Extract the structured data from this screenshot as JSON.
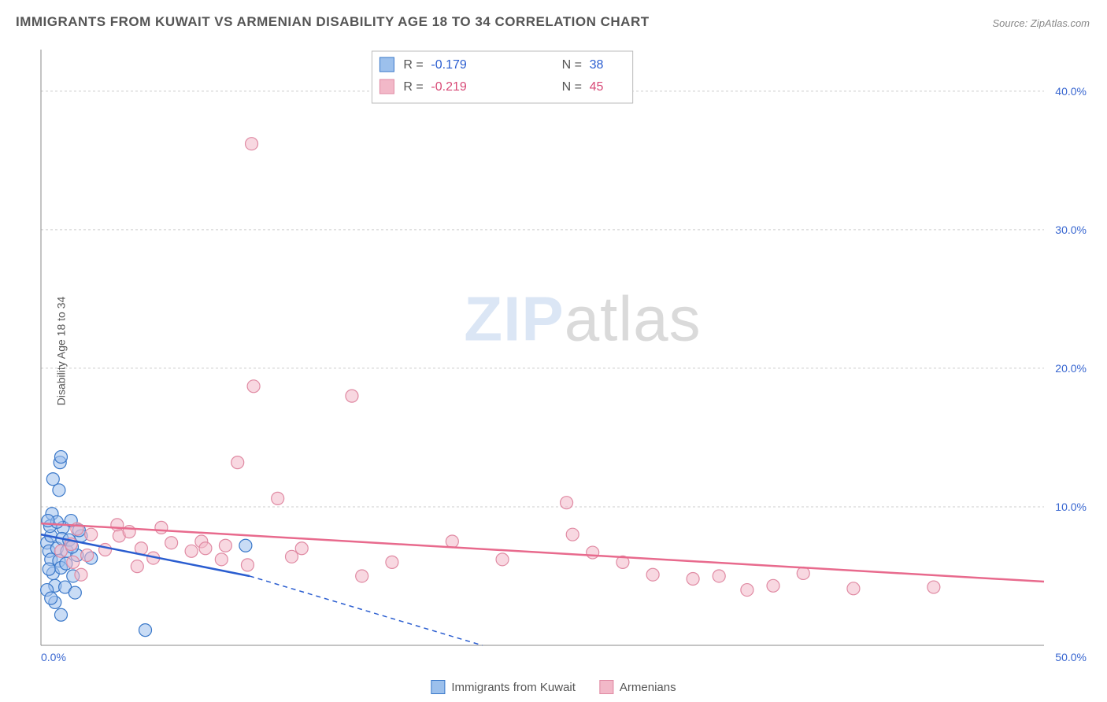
{
  "title": "IMMIGRANTS FROM KUWAIT VS ARMENIAN DISABILITY AGE 18 TO 34 CORRELATION CHART",
  "source": "Source: ZipAtlas.com",
  "ylabel": "Disability Age 18 to 34",
  "watermark_a": "ZIP",
  "watermark_b": "atlas",
  "chart": {
    "type": "scatter",
    "xlim": [
      0,
      50
    ],
    "ylim": [
      0,
      43
    ],
    "xticks": [
      0,
      50
    ],
    "xtick_labels": [
      "0.0%",
      "50.0%"
    ],
    "yticks": [
      10,
      20,
      30,
      40
    ],
    "ytick_labels": [
      "10.0%",
      "20.0%",
      "30.0%",
      "40.0%"
    ],
    "grid_color": "#cccccc",
    "background_color": "#ffffff",
    "axis_color": "#888888",
    "tick_label_color": "#3866d0",
    "marker_radius": 8,
    "marker_opacity": 0.55,
    "series": [
      {
        "name": "Immigrants from Kuwait",
        "color_fill": "#9cc0ec",
        "color_stroke": "#3a78c9",
        "trend": {
          "x1": 0,
          "y1": 8.0,
          "x2": 10.4,
          "y2": 5.0,
          "dash_after_x": 10.4,
          "dash_to_x": 22,
          "dash_to_y": 0.0,
          "color": "#2a5dd0",
          "width": 2.5
        },
        "points": [
          [
            0.3,
            7.4
          ],
          [
            0.4,
            6.8
          ],
          [
            0.5,
            7.9
          ],
          [
            0.5,
            6.2
          ],
          [
            0.45,
            8.6
          ],
          [
            0.6,
            5.2
          ],
          [
            0.7,
            4.3
          ],
          [
            0.55,
            9.5
          ],
          [
            0.8,
            7.0
          ],
          [
            0.9,
            6.1
          ],
          [
            1.0,
            5.6
          ],
          [
            1.1,
            8.5
          ],
          [
            1.05,
            7.7
          ],
          [
            0.7,
            3.1
          ],
          [
            0.9,
            11.2
          ],
          [
            1.3,
            6.8
          ],
          [
            1.4,
            7.6
          ],
          [
            1.6,
            5.0
          ],
          [
            1.5,
            9.0
          ],
          [
            0.3,
            4.0
          ],
          [
            0.4,
            5.5
          ],
          [
            1.8,
            6.5
          ],
          [
            1.2,
            4.2
          ],
          [
            2.0,
            7.9
          ],
          [
            0.8,
            8.9
          ],
          [
            0.95,
            13.2
          ],
          [
            1.0,
            13.6
          ],
          [
            0.6,
            12.0
          ],
          [
            2.5,
            6.3
          ],
          [
            1.7,
            3.8
          ],
          [
            1.9,
            8.3
          ],
          [
            1.0,
            2.2
          ],
          [
            5.2,
            1.1
          ],
          [
            10.2,
            7.2
          ],
          [
            0.5,
            3.4
          ],
          [
            0.35,
            9.0
          ],
          [
            1.25,
            5.9
          ],
          [
            1.55,
            7.1
          ]
        ]
      },
      {
        "name": "Armenians",
        "color_fill": "#f2b8c8",
        "color_stroke": "#e08aa3",
        "trend": {
          "x1": 0,
          "y1": 8.8,
          "x2": 50,
          "y2": 4.6,
          "color": "#e86a8d",
          "width": 2.5
        },
        "points": [
          [
            1.0,
            6.8
          ],
          [
            1.5,
            7.3
          ],
          [
            1.6,
            6.0
          ],
          [
            1.8,
            8.4
          ],
          [
            2.0,
            5.1
          ],
          [
            2.5,
            8.0
          ],
          [
            3.2,
            6.9
          ],
          [
            3.8,
            8.7
          ],
          [
            3.9,
            7.9
          ],
          [
            4.4,
            8.2
          ],
          [
            5.0,
            7.0
          ],
          [
            5.6,
            6.3
          ],
          [
            6.5,
            7.4
          ],
          [
            7.5,
            6.8
          ],
          [
            8.0,
            7.5
          ],
          [
            8.2,
            7.0
          ],
          [
            9.0,
            6.2
          ],
          [
            9.2,
            7.2
          ],
          [
            9.8,
            13.2
          ],
          [
            10.3,
            5.8
          ],
          [
            10.6,
            18.7
          ],
          [
            11.8,
            10.6
          ],
          [
            12.5,
            6.4
          ],
          [
            15.5,
            18.0
          ],
          [
            16.0,
            5.0
          ],
          [
            17.5,
            6.0
          ],
          [
            20.5,
            7.5
          ],
          [
            26.2,
            10.3
          ],
          [
            26.5,
            8.0
          ],
          [
            27.5,
            6.7
          ],
          [
            29.0,
            6.0
          ],
          [
            32.5,
            4.8
          ],
          [
            33.8,
            5.0
          ],
          [
            35.2,
            4.0
          ],
          [
            36.5,
            4.3
          ],
          [
            38.0,
            5.2
          ],
          [
            40.5,
            4.1
          ],
          [
            44.5,
            4.2
          ],
          [
            10.5,
            36.2
          ],
          [
            2.3,
            6.5
          ],
          [
            4.8,
            5.7
          ],
          [
            6.0,
            8.5
          ],
          [
            13.0,
            7.0
          ],
          [
            23.0,
            6.2
          ],
          [
            30.5,
            5.1
          ]
        ]
      }
    ],
    "stat_box": {
      "x": 16.5,
      "width": 13,
      "rows": [
        {
          "swatch_fill": "#9cc0ec",
          "swatch_stroke": "#3a78c9",
          "r_label": "R =",
          "r_val": "-0.179",
          "n_label": "N =",
          "n_val": "38",
          "val_class": "stat-val-blue"
        },
        {
          "swatch_fill": "#f2b8c8",
          "swatch_stroke": "#e08aa3",
          "r_label": "R =",
          "r_val": "-0.219",
          "n_label": "N =",
          "n_val": "45",
          "val_class": "stat-val-pink"
        }
      ]
    }
  },
  "legend": {
    "items": [
      {
        "label": "Immigrants from Kuwait",
        "fill": "#9cc0ec",
        "stroke": "#3a78c9"
      },
      {
        "label": "Armenians",
        "fill": "#f2b8c8",
        "stroke": "#e08aa3"
      }
    ]
  }
}
